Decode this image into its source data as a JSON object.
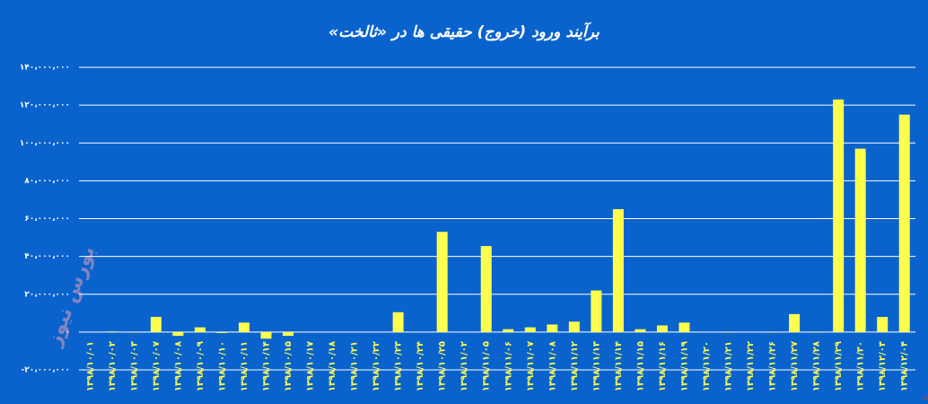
{
  "chart_data": {
    "type": "bar",
    "title": "برآیند ورود (خروج) حقیقی ها در «ثالخت»",
    "watermark": "بورس نیوز",
    "color": "#ffff4d",
    "grid": true,
    "categories": [
      "۱۳۹۸/۱۰/۰۱",
      "۱۳۹۸/۱۰/۰۲",
      "۱۳۹۸/۱۰/۰۳",
      "۱۳۹۸/۱۰/۰۷",
      "۱۳۹۸/۱۰/۰۸",
      "۱۳۹۸/۱۰/۰۹",
      "۱۳۹۸/۱۰/۱۰",
      "۱۳۹۸/۱۰/۱۱",
      "۱۳۹۸/۱۰/۱۴",
      "۱۳۹۸/۱۰/۱۵",
      "۱۳۹۸/۱۰/۱۷",
      "۱۳۹۸/۱۰/۱۸",
      "۱۳۹۸/۱۰/۲۱",
      "۱۳۹۸/۱۰/۲۲",
      "۱۳۹۸/۱۰/۲۳",
      "۱۳۹۸/۱۰/۲۴",
      "۱۳۹۸/۱۰/۲۵",
      "۱۳۹۸/۱۱/۰۲",
      "۱۳۹۸/۱۱/۰۵",
      "۱۳۹۸/۱۱/۰۶",
      "۱۳۹۸/۱۱/۰۷",
      "۱۳۹۸/۱۱/۰۸",
      "۱۳۹۸/۱۱/۱۲",
      "۱۳۹۸/۱۱/۱۳",
      "۱۳۹۸/۱۱/۱۴",
      "۱۳۹۸/۱۱/۱۵",
      "۱۳۹۸/۱۱/۱۶",
      "۱۳۹۸/۱۱/۱۹",
      "۱۳۹۸/۱۱/۲۰",
      "۱۳۹۸/۱۱/۲۱",
      "۱۳۹۸/۱۱/۲۲",
      "۱۳۹۸/۱۱/۲۶",
      "۱۳۹۸/۱۱/۲۷",
      "۱۳۹۸/۱۱/۲۸",
      "۱۳۹۸/۱۱/۲۹",
      "۱۳۹۸/۱۱/۳۰",
      "۱۳۹۸/۱۲/۰۳",
      "۱۳۹۸/۱۲/۰۴"
    ],
    "values": [
      0,
      300000,
      -300000,
      8000000,
      -2000000,
      2500000,
      -500000,
      5000000,
      -3500000,
      -2000000,
      0,
      0,
      0,
      0,
      10500000,
      0,
      53000000,
      0,
      45500000,
      1500000,
      2500000,
      4000000,
      5500000,
      22000000,
      65000000,
      1500000,
      3500000,
      5000000,
      0,
      -300000,
      0,
      -300000,
      9500000,
      -300000,
      123000000,
      97000000,
      8000000,
      115000000
    ],
    "ylim": [
      -20000000,
      140000000
    ],
    "yticks": [
      {
        "value": -20000000,
        "label": "-۲۰،۰۰۰،۰۰۰"
      },
      {
        "value": 0,
        "label": "۰"
      },
      {
        "value": 20000000,
        "label": "۲۰،۰۰۰،۰۰۰"
      },
      {
        "value": 40000000,
        "label": "۴۰،۰۰۰،۰۰۰"
      },
      {
        "value": 60000000,
        "label": "۶۰،۰۰۰،۰۰۰"
      },
      {
        "value": 80000000,
        "label": "۸۰،۰۰۰،۰۰۰"
      },
      {
        "value": 100000000,
        "label": "۱۰۰،۰۰۰،۰۰۰"
      },
      {
        "value": 120000000,
        "label": "۱۲۰،۰۰۰،۰۰۰"
      },
      {
        "value": 140000000,
        "label": "۱۴۰،۰۰۰،۰۰۰"
      }
    ]
  }
}
